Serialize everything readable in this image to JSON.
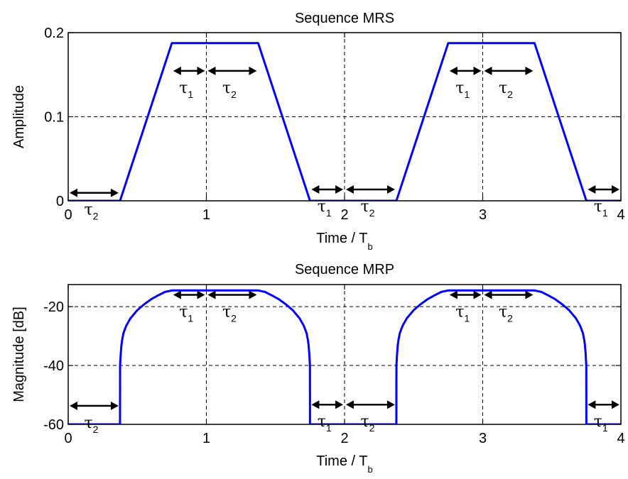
{
  "chart_data": [
    {
      "type": "line",
      "title": "Sequence MRS",
      "xlabel": "Time / T",
      "xlabel_sub": "b",
      "ylabel": "Amplitude",
      "xlim": [
        0,
        4
      ],
      "ylim": [
        0,
        0.2
      ],
      "xticks": [
        0,
        1,
        2,
        3,
        4
      ],
      "xtick_labels": [
        "0",
        "1",
        "2",
        "3",
        "4"
      ],
      "yticks": [
        0,
        0.1,
        0.2
      ],
      "ytick_labels": [
        "0",
        "0.1",
        "0.2"
      ],
      "grid": true,
      "series": [
        {
          "color": "#0000ff",
          "x": [
            0,
            0.375,
            0.75,
            1.375,
            1.75,
            2.375,
            2.75,
            3.375,
            3.75,
            4
          ],
          "y": [
            0,
            0,
            0.1875,
            0.1875,
            0,
            0,
            0.1875,
            0.1875,
            0,
            0
          ]
        }
      ],
      "annotations": [
        {
          "label": "τ",
          "sub": "2",
          "x_from": 0,
          "x_to": 0.375,
          "y": 0.0095
        },
        {
          "label": "τ",
          "sub": "1",
          "x_from": 0.75,
          "x_to": 1.0,
          "y": 0.1545
        },
        {
          "label": "τ",
          "sub": "2",
          "x_from": 1.0,
          "x_to": 1.375,
          "y": 0.1545
        },
        {
          "label": "τ",
          "sub": "1",
          "x_from": 1.75,
          "x_to": 2.0,
          "y": 0.0135
        },
        {
          "label": "τ",
          "sub": "2",
          "x_from": 2.0,
          "x_to": 2.375,
          "y": 0.0135
        },
        {
          "label": "τ",
          "sub": "1",
          "x_from": 2.75,
          "x_to": 3.0,
          "y": 0.1545
        },
        {
          "label": "τ",
          "sub": "2",
          "x_from": 3.0,
          "x_to": 3.375,
          "y": 0.1545
        },
        {
          "label": "τ",
          "sub": "1",
          "x_from": 3.75,
          "x_to": 4.0,
          "y": 0.0135
        }
      ]
    },
    {
      "type": "line",
      "title": "Sequence MRP",
      "xlabel": "Time / T",
      "xlabel_sub": "b",
      "ylabel": "Magnitude [dB]",
      "xlim": [
        0,
        4
      ],
      "ylim": [
        -60,
        -12.5
      ],
      "xticks": [
        0,
        1,
        2,
        3,
        4
      ],
      "xtick_labels": [
        "0",
        "1",
        "2",
        "3",
        "4"
      ],
      "yticks": [
        -60,
        -40,
        -20
      ],
      "ytick_labels": [
        "-60",
        "-40",
        "-20"
      ],
      "grid": true,
      "series": [
        {
          "color": "#0000ff",
          "x": [
            0,
            0.375,
            0.3755,
            0.38,
            0.385,
            0.39,
            0.4,
            0.42,
            0.45,
            0.5,
            0.55,
            0.6,
            0.65,
            0.7,
            0.75,
            1.375,
            1.425,
            1.475,
            1.525,
            1.575,
            1.625,
            1.675,
            1.705,
            1.725,
            1.735,
            1.74,
            1.745,
            1.7495,
            1.75,
            2.375,
            2.3755,
            2.38,
            2.385,
            2.39,
            2.4,
            2.42,
            2.45,
            2.5,
            2.55,
            2.6,
            2.65,
            2.7,
            2.75,
            3.375,
            3.425,
            3.475,
            3.525,
            3.575,
            3.625,
            3.675,
            3.705,
            3.725,
            3.735,
            3.74,
            3.745,
            3.7495,
            3.75,
            4.0
          ],
          "y": [
            -60,
            -60,
            -40,
            -36.2,
            -33.2,
            -31.4,
            -29,
            -26.5,
            -24,
            -21.2,
            -19.2,
            -17.5,
            -16.2,
            -15,
            -14.5,
            -14.5,
            -15,
            -16.2,
            -17.5,
            -19.2,
            -21.2,
            -24,
            -26.5,
            -29,
            -31.4,
            -33.2,
            -36.2,
            -40,
            -60,
            -60,
            -40,
            -36.2,
            -33.2,
            -31.4,
            -29,
            -26.5,
            -24,
            -21.2,
            -19.2,
            -17.5,
            -16.2,
            -15,
            -14.5,
            -14.5,
            -15,
            -16.2,
            -17.5,
            -19.2,
            -21.2,
            -24,
            -26.5,
            -29,
            -31.4,
            -33.2,
            -36.2,
            -40,
            -60,
            -60
          ]
        }
      ],
      "annotations": [
        {
          "label": "τ",
          "sub": "2",
          "x_from": 0,
          "x_to": 0.375,
          "y": -53.7
        },
        {
          "label": "τ",
          "sub": "1",
          "x_from": 0.75,
          "x_to": 1.0,
          "y": -16
        },
        {
          "label": "τ",
          "sub": "2",
          "x_from": 1.0,
          "x_to": 1.375,
          "y": -16
        },
        {
          "label": "τ",
          "sub": "1",
          "x_from": 1.75,
          "x_to": 2.0,
          "y": -53.3
        },
        {
          "label": "τ",
          "sub": "2",
          "x_from": 2.0,
          "x_to": 2.375,
          "y": -53.3
        },
        {
          "label": "τ",
          "sub": "1",
          "x_from": 2.75,
          "x_to": 3.0,
          "y": -16
        },
        {
          "label": "τ",
          "sub": "2",
          "x_from": 3.0,
          "x_to": 3.375,
          "y": -16
        },
        {
          "label": "τ",
          "sub": "1",
          "x_from": 3.75,
          "x_to": 4.0,
          "y": -53.3
        }
      ]
    }
  ]
}
